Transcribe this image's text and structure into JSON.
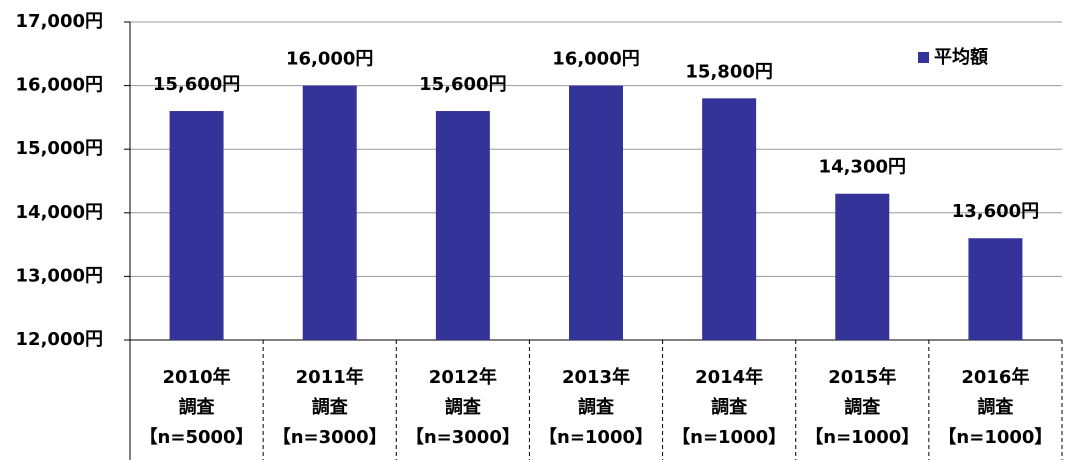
{
  "chart_data": {
    "type": "bar",
    "categories": [
      [
        "2010年",
        "調査",
        "【n=5000】"
      ],
      [
        "2011年",
        "調査",
        "【n=3000】"
      ],
      [
        "2012年",
        "調査",
        "【n=3000】"
      ],
      [
        "2013年",
        "調査",
        "【n=1000】"
      ],
      [
        "2014年",
        "調査",
        "【n=1000】"
      ],
      [
        "2015年",
        "調査",
        "【n=1000】"
      ],
      [
        "2016年",
        "調査",
        "【n=1000】"
      ]
    ],
    "series": [
      {
        "name": "平均額",
        "color": "#333399",
        "values": [
          15600,
          16000,
          15600,
          16000,
          15800,
          14300,
          13600
        ],
        "value_labels": [
          "15,600円",
          "16,000円",
          "15,600円",
          "16,000円",
          "15,800円",
          "14,300円",
          "13,600円"
        ]
      }
    ],
    "ylim": [
      12000,
      17000
    ],
    "yticks": [
      {
        "value": 12000,
        "label": "12,000円"
      },
      {
        "value": 13000,
        "label": "13,000円"
      },
      {
        "value": 14000,
        "label": "14,000円"
      },
      {
        "value": 15000,
        "label": "15,000円"
      },
      {
        "value": 16000,
        "label": "16,000円"
      },
      {
        "value": 17000,
        "label": "17,000円"
      }
    ],
    "grid": true,
    "legend": "upper right"
  }
}
